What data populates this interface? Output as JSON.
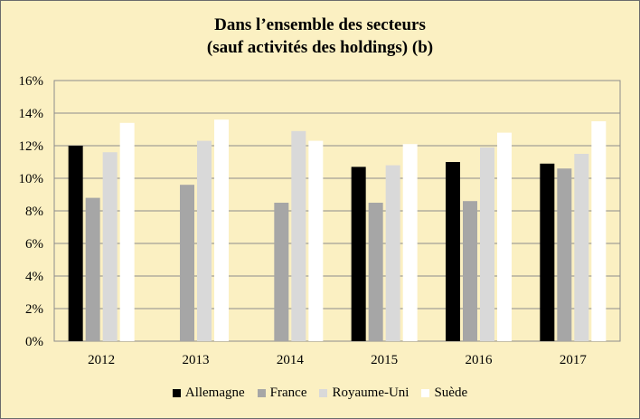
{
  "chart_data": {
    "type": "bar",
    "title_line1": "Dans l’ensemble des secteurs",
    "title_line2": "(sauf activités des holdings) (b)",
    "xlabel": "",
    "ylabel": "",
    "categories": [
      "2012",
      "2013",
      "2014",
      "2015",
      "2016",
      "2017"
    ],
    "y_ticks": [
      "0%",
      "2%",
      "4%",
      "6%",
      "8%",
      "10%",
      "12%",
      "14%",
      "16%"
    ],
    "ylim": [
      0,
      16
    ],
    "grid": true,
    "legend_position": "bottom",
    "series": [
      {
        "name": "Allemagne",
        "color": "#000000",
        "values": [
          12.0,
          null,
          null,
          10.7,
          11.0,
          10.9
        ]
      },
      {
        "name": "France",
        "color": "#a6a6a6",
        "values": [
          8.8,
          9.6,
          8.5,
          8.5,
          8.6,
          10.6
        ]
      },
      {
        "name": "Royaume-Uni",
        "color": "#d9d9d9",
        "values": [
          11.6,
          12.3,
          12.9,
          10.8,
          11.9,
          11.5
        ]
      },
      {
        "name": "Suède",
        "color": "#ffffff",
        "values": [
          13.4,
          13.6,
          12.3,
          12.1,
          12.8,
          13.5
        ]
      }
    ]
  }
}
